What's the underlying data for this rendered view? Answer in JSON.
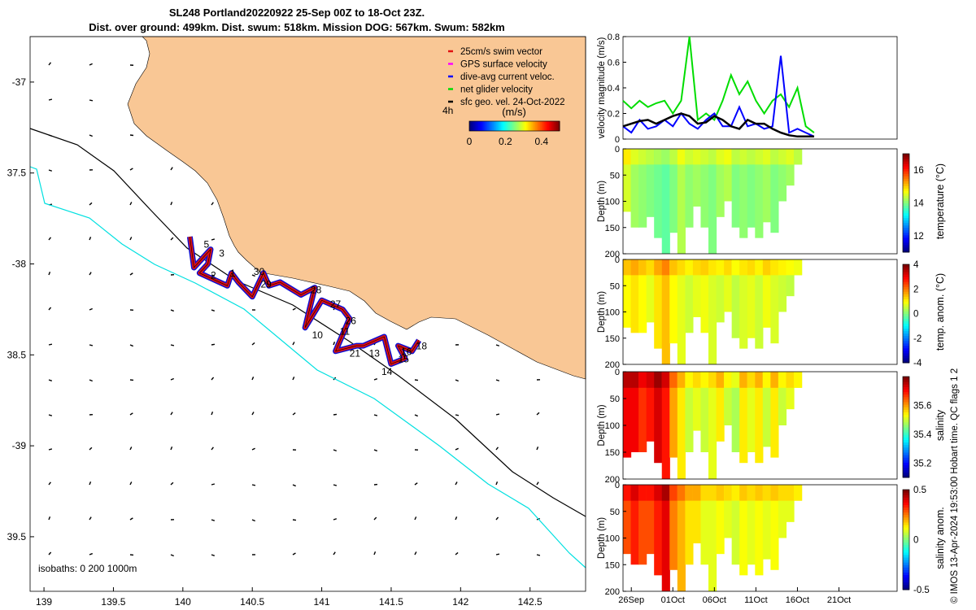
{
  "title_line1": "SL248 Portland20220922 25-Sep 00Z to 18-Oct 23Z.",
  "title_line2": "Dist. over ground: 499km. Dist. swum: 518km. Mission DOG: 567km. Swum: 582km",
  "watermark": "© IMOS 13-Apr-2024 19:53:00 Hobart time. QC flags 1  2",
  "colors": {
    "land": "#f9c795",
    "isobath_200": "#000000",
    "isobath_1000": "#00e0e0",
    "track_red": "#e01010",
    "track_blue": "#1010d0"
  },
  "chart_data": [
    {
      "type": "map",
      "xlim": [
        138.9,
        142.9
      ],
      "ylim": [
        -39.8,
        -36.75
      ],
      "x_ticks": [
        139,
        139.5,
        140,
        140.5,
        141,
        141.5,
        142,
        142.5
      ],
      "x_tick_labels": [
        "139",
        "139.5",
        "140",
        "140.5",
        "141",
        "141.5",
        "142",
        "142.5"
      ],
      "y_ticks": [
        -37,
        -37.5,
        -38,
        -38.5,
        -39,
        -39.5
      ],
      "y_tick_labels": [
        "-37",
        "37.5",
        "-38",
        "38.5",
        "-39",
        "39.5"
      ],
      "legend": [
        {
          "label": "25cm/s swim vector",
          "color": "#e01010"
        },
        {
          "label": "GPS surface velocity",
          "color": "#ff00ff"
        },
        {
          "label": "dive-avg current veloc.",
          "color": "#0000ff"
        },
        {
          "label": "net glider velocity",
          "color": "#00dd00"
        },
        {
          "label": "sfc geo. vel. 24-Oct-2022",
          "color": "#000000"
        }
      ],
      "colorbar": {
        "label": "(m/s)",
        "ticks": [
          0,
          0.2,
          0.4
        ],
        "tick_labels": [
          "0",
          "0.2",
          "0.4"
        ],
        "range": [
          0,
          0.5
        ]
      },
      "time_label": "4h",
      "isobath_label": "isobaths: 0   200   1000m",
      "track": [
        [
          140.05,
          -37.85
        ],
        [
          140.08,
          -38.02
        ],
        [
          140.2,
          -37.92
        ],
        [
          140.18,
          -38.0
        ],
        [
          140.12,
          -38.05
        ],
        [
          140.32,
          -38.12
        ],
        [
          140.35,
          -38.05
        ],
        [
          140.4,
          -38.1
        ],
        [
          140.5,
          -38.18
        ],
        [
          140.58,
          -38.05
        ],
        [
          140.62,
          -38.12
        ],
        [
          140.7,
          -38.1
        ],
        [
          140.85,
          -38.17
        ],
        [
          140.95,
          -38.13
        ],
        [
          140.88,
          -38.35
        ],
        [
          141.0,
          -38.2
        ],
        [
          141.15,
          -38.25
        ],
        [
          141.2,
          -38.3
        ],
        [
          141.1,
          -38.48
        ],
        [
          141.25,
          -38.45
        ],
        [
          141.3,
          -38.45
        ],
        [
          141.45,
          -38.4
        ],
        [
          141.5,
          -38.55
        ],
        [
          141.6,
          -38.52
        ],
        [
          141.55,
          -38.45
        ],
        [
          141.65,
          -38.48
        ],
        [
          141.7,
          -38.42
        ]
      ],
      "track_labels": [
        {
          "text": "5",
          "lon": 140.15,
          "lat": -37.91
        },
        {
          "text": "3",
          "lon": 140.26,
          "lat": -37.96
        },
        {
          "text": "2",
          "lon": 140.2,
          "lat": -38.08
        },
        {
          "text": "1",
          "lon": 140.34,
          "lat": -38.07
        },
        {
          "text": "30",
          "lon": 140.51,
          "lat": -38.06
        },
        {
          "text": "29",
          "lon": 140.56,
          "lat": -38.13
        },
        {
          "text": "28",
          "lon": 140.92,
          "lat": -38.16
        },
        {
          "text": "27",
          "lon": 141.06,
          "lat": -38.24
        },
        {
          "text": "26",
          "lon": 141.17,
          "lat": -38.33
        },
        {
          "text": "11",
          "lon": 141.13,
          "lat": -38.39
        },
        {
          "text": "10",
          "lon": 140.93,
          "lat": -38.41
        },
        {
          "text": "21",
          "lon": 141.2,
          "lat": -38.51
        },
        {
          "text": "13",
          "lon": 141.34,
          "lat": -38.51
        },
        {
          "text": "16",
          "lon": 141.57,
          "lat": -38.5
        },
        {
          "text": "18",
          "lon": 141.68,
          "lat": -38.47
        },
        {
          "text": "15",
          "lon": 141.55,
          "lat": -38.54
        },
        {
          "text": "14",
          "lon": 141.43,
          "lat": -38.61
        }
      ]
    },
    {
      "type": "line",
      "ylabel": "velocity magnitude (m/s)",
      "ylim": [
        0,
        0.8
      ],
      "y_ticks": [
        0,
        0.2,
        0.4,
        0.6,
        0.8
      ],
      "y_tick_labels": [
        "0",
        "0.2",
        "0.4",
        "0.6",
        "0.8"
      ],
      "x_days": [
        0,
        1,
        2,
        3,
        4,
        5,
        6,
        7,
        8,
        9,
        10,
        11,
        12,
        13,
        14,
        15,
        16,
        17,
        18,
        19,
        20,
        21,
        22,
        23
      ],
      "series": [
        {
          "name": "net glider velocity",
          "color": "#00dd00",
          "values": [
            0.3,
            0.24,
            0.3,
            0.25,
            0.28,
            0.3,
            0.2,
            0.3,
            0.8,
            0.15,
            0.2,
            0.15,
            0.3,
            0.5,
            0.35,
            0.45,
            0.3,
            0.2,
            0.3,
            0.35,
            0.25,
            0.4,
            0.1,
            0.05
          ]
        },
        {
          "name": "dive-avg current veloc.",
          "color": "#0000ff",
          "values": [
            0.1,
            0.05,
            0.15,
            0.08,
            0.1,
            0.15,
            0.1,
            0.2,
            0.12,
            0.08,
            0.15,
            0.2,
            0.1,
            0.1,
            0.25,
            0.1,
            0.12,
            0.08,
            0.1,
            0.65,
            0.05,
            0.08,
            0.05,
            0.02
          ]
        },
        {
          "name": "sfc geo. vel.",
          "color": "#000000",
          "values": [
            0.1,
            0.12,
            0.14,
            0.15,
            0.12,
            0.15,
            0.18,
            0.2,
            0.18,
            0.12,
            0.13,
            0.18,
            0.15,
            0.1,
            0.08,
            0.15,
            0.12,
            0.12,
            0.08,
            0.05,
            0.03,
            0.02,
            0.02,
            0.02
          ]
        }
      ]
    },
    {
      "type": "heatmap",
      "ylabel": "Depth (m)",
      "clabel": "temperature (°C)",
      "y_ticks": [
        0,
        50,
        100,
        150,
        200
      ],
      "y_tick_labels": [
        "0",
        "50",
        "100",
        "150",
        "200"
      ],
      "c_ticks": [
        12,
        14,
        16
      ],
      "c_tick_labels": [
        "12",
        "14",
        "16"
      ],
      "crange": [
        11,
        17
      ],
      "max_depth": [
        120,
        150,
        150,
        130,
        170,
        200,
        160,
        200,
        150,
        110,
        150,
        200,
        130,
        100,
        150,
        170,
        150,
        170,
        140,
        160,
        100,
        70,
        30
      ],
      "values": [
        14.5,
        14.2,
        14.1,
        14.0,
        13.9,
        13.8,
        14.0,
        14.3,
        14.1,
        14.2,
        14.1,
        14.0,
        14.2,
        14.3,
        14.0,
        14.1,
        14.0,
        14.1,
        14.2,
        14.0,
        14.1,
        14.2,
        14.0
      ]
    },
    {
      "type": "heatmap",
      "ylabel": "Depth (m)",
      "clabel": "temp. anom. (°C)",
      "y_ticks": [
        0,
        50,
        100,
        150,
        200
      ],
      "y_tick_labels": [
        "0",
        "50",
        "100",
        "150",
        "200"
      ],
      "c_ticks": [
        -4,
        -2,
        0,
        2,
        4
      ],
      "c_tick_labels": [
        "-4",
        "-2",
        "0",
        "2",
        "4"
      ],
      "crange": [
        -4,
        4
      ],
      "max_depth": [
        130,
        140,
        140,
        120,
        170,
        200,
        160,
        200,
        140,
        110,
        140,
        200,
        120,
        100,
        150,
        170,
        150,
        170,
        130,
        160,
        100,
        70,
        30
      ],
      "values": [
        1.0,
        1.2,
        1.0,
        0.8,
        1.2,
        1.5,
        1.0,
        0.8,
        0.6,
        0.8,
        0.9,
        0.7,
        0.6,
        0.8,
        0.5,
        0.7,
        0.8,
        0.6,
        0.9,
        0.7,
        0.6,
        0.5,
        0.4
      ]
    },
    {
      "type": "heatmap",
      "ylabel": "Depth (m)",
      "clabel": "salinity",
      "y_ticks": [
        0,
        50,
        100,
        150,
        200
      ],
      "y_tick_labels": [
        "0",
        "50",
        "100",
        "150",
        "200"
      ],
      "c_ticks": [
        35.2,
        35.4,
        35.6
      ],
      "c_tick_labels": [
        "35.2",
        "35.4",
        "35.6"
      ],
      "crange": [
        35.1,
        35.8
      ],
      "max_depth": [
        160,
        150,
        150,
        130,
        170,
        200,
        160,
        200,
        150,
        110,
        150,
        200,
        130,
        100,
        150,
        170,
        150,
        170,
        140,
        160,
        100,
        70,
        30
      ],
      "values": [
        35.72,
        35.72,
        35.68,
        35.7,
        35.74,
        35.7,
        35.6,
        35.55,
        35.5,
        35.52,
        35.5,
        35.52,
        35.55,
        35.5,
        35.48,
        35.55,
        35.52,
        35.55,
        35.5,
        35.55,
        35.5,
        35.52,
        35.5
      ]
    },
    {
      "type": "heatmap",
      "ylabel": "Depth (m)",
      "clabel": "salinity anom.",
      "y_ticks": [
        0,
        50,
        100,
        150,
        200
      ],
      "y_tick_labels": [
        "0",
        "50",
        "100",
        "150",
        "200"
      ],
      "c_ticks": [
        -0.5,
        0,
        0.5
      ],
      "c_tick_labels": [
        "-0.5",
        "0",
        "0.5"
      ],
      "crange": [
        -0.5,
        0.5
      ],
      "max_depth": [
        130,
        150,
        150,
        130,
        170,
        200,
        160,
        200,
        150,
        110,
        150,
        200,
        130,
        100,
        150,
        170,
        150,
        170,
        140,
        160,
        100,
        70,
        30
      ],
      "values": [
        0.3,
        0.35,
        0.3,
        0.3,
        0.35,
        0.4,
        0.25,
        0.2,
        0.15,
        0.15,
        0.1,
        0.1,
        0.12,
        0.1,
        0.08,
        0.12,
        0.1,
        0.12,
        0.1,
        0.12,
        0.1,
        0.1,
        0.08
      ]
    },
    {
      "type": "time_axis",
      "x_days": [
        1,
        6,
        11,
        16,
        21,
        26
      ],
      "x_tick_labels": [
        "26Sep",
        "01Oct",
        "06Oct",
        "11Oct",
        "16Oct",
        "21Oct"
      ],
      "xlim_days": [
        0,
        33
      ]
    }
  ]
}
